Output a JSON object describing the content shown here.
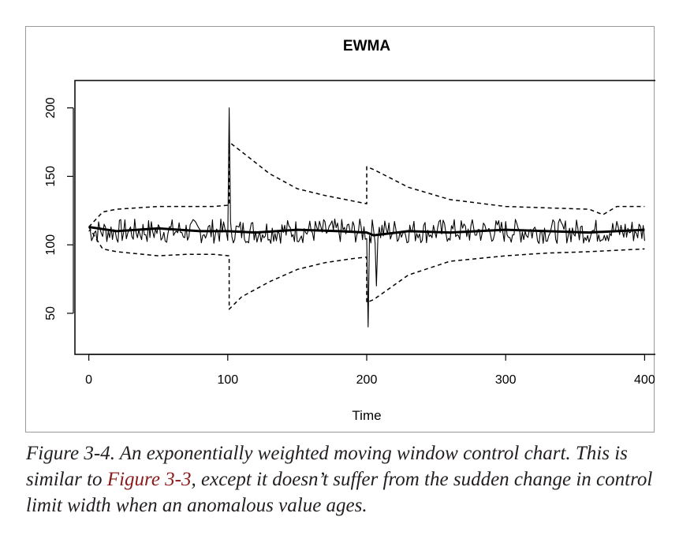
{
  "chart_data": {
    "type": "line",
    "title": "EWMA",
    "xlabel": "Time",
    "ylabel": "",
    "xlim": [
      -10,
      410
    ],
    "ylim": [
      20,
      220
    ],
    "xticks": [
      0,
      100,
      200,
      300,
      400
    ],
    "yticks": [
      50,
      100,
      150,
      200
    ],
    "grid": false,
    "legend": "none",
    "series": [
      {
        "style": "thin-solid",
        "base_level": 110,
        "noise_amplitude": 9,
        "n_points": 401,
        "spikes": [
          {
            "x": 101,
            "y": 200
          },
          {
            "x": 201,
            "y": 40
          },
          {
            "x": 207,
            "y": 70
          }
        ]
      },
      {
        "style": "thick-solid",
        "points": [
          [
            0,
            113
          ],
          [
            20,
            110
          ],
          [
            50,
            112
          ],
          [
            80,
            110
          ],
          [
            100,
            110
          ],
          [
            120,
            109
          ],
          [
            150,
            111
          ],
          [
            180,
            110
          ],
          [
            200,
            109
          ],
          [
            205,
            107
          ],
          [
            230,
            110
          ],
          [
            260,
            109
          ],
          [
            300,
            111
          ],
          [
            330,
            110
          ],
          [
            360,
            109
          ],
          [
            400,
            111
          ]
        ]
      },
      {
        "style": "dashed",
        "points": [
          [
            0,
            113
          ],
          [
            10,
            124
          ],
          [
            20,
            126
          ],
          [
            50,
            128
          ],
          [
            70,
            128
          ],
          [
            90,
            128
          ],
          [
            101,
            129
          ],
          [
            101,
            175
          ],
          [
            110,
            168
          ],
          [
            130,
            152
          ],
          [
            150,
            141
          ],
          [
            170,
            136
          ],
          [
            190,
            132
          ],
          [
            200,
            130
          ],
          [
            200,
            157
          ],
          [
            205,
            155
          ],
          [
            230,
            142
          ],
          [
            260,
            133
          ],
          [
            300,
            128
          ],
          [
            330,
            127
          ],
          [
            360,
            126
          ],
          [
            370,
            122
          ],
          [
            380,
            128
          ],
          [
            400,
            128
          ]
        ]
      },
      {
        "style": "dashed",
        "points": [
          [
            0,
            113
          ],
          [
            10,
            97
          ],
          [
            20,
            95
          ],
          [
            50,
            92
          ],
          [
            70,
            93
          ],
          [
            90,
            93
          ],
          [
            101,
            92
          ],
          [
            101,
            53
          ],
          [
            110,
            62
          ],
          [
            130,
            73
          ],
          [
            150,
            82
          ],
          [
            170,
            87
          ],
          [
            190,
            90
          ],
          [
            200,
            91
          ],
          [
            200,
            58
          ],
          [
            205,
            60
          ],
          [
            230,
            78
          ],
          [
            260,
            88
          ],
          [
            300,
            92
          ],
          [
            330,
            94
          ],
          [
            360,
            95
          ],
          [
            380,
            96
          ],
          [
            400,
            97
          ]
        ]
      }
    ]
  },
  "caption": {
    "before_link": "Figure 3-4. An exponentially weighted moving window control chart. This is similar to ",
    "link": "Figure 3-3",
    "after_link": ", except it doesn’t suffer from the sudden change in control limit width when an anomalous value ages."
  }
}
